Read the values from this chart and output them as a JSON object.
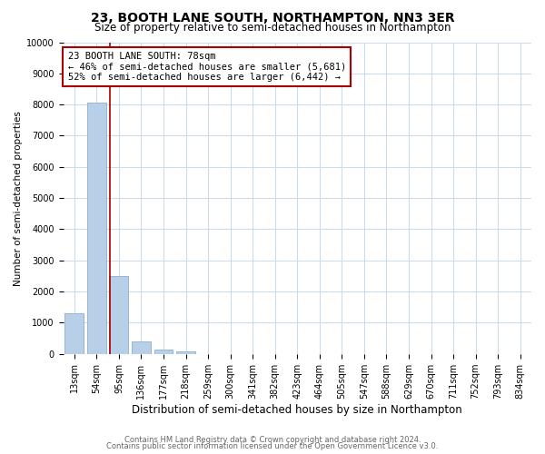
{
  "title": "23, BOOTH LANE SOUTH, NORTHAMPTON, NN3 3ER",
  "subtitle": "Size of property relative to semi-detached houses in Northampton",
  "xlabel": "Distribution of semi-detached houses by size in Northampton",
  "ylabel": "Number of semi-detached properties",
  "categories": [
    "13sqm",
    "54sqm",
    "95sqm",
    "136sqm",
    "177sqm",
    "218sqm",
    "259sqm",
    "300sqm",
    "341sqm",
    "382sqm",
    "423sqm",
    "464sqm",
    "505sqm",
    "547sqm",
    "588sqm",
    "629sqm",
    "670sqm",
    "711sqm",
    "752sqm",
    "793sqm",
    "834sqm"
  ],
  "values": [
    1300,
    8050,
    2500,
    400,
    130,
    90,
    0,
    0,
    0,
    0,
    0,
    0,
    0,
    0,
    0,
    0,
    0,
    0,
    0,
    0,
    0
  ],
  "bar_color": "#b8cfe8",
  "bar_edge_color": "#89afd4",
  "vline_color": "#aa0000",
  "vline_x": 1.58,
  "annotation_title": "23 BOOTH LANE SOUTH: 78sqm",
  "annotation_line1": "← 46% of semi-detached houses are smaller (5,681)",
  "annotation_line2": "52% of semi-detached houses are larger (6,442) →",
  "annotation_box_color": "#ffffff",
  "annotation_box_edge": "#aa0000",
  "ylim": [
    0,
    10000
  ],
  "yticks": [
    0,
    1000,
    2000,
    3000,
    4000,
    5000,
    6000,
    7000,
    8000,
    9000,
    10000
  ],
  "footnote1": "Contains HM Land Registry data © Crown copyright and database right 2024.",
  "footnote2": "Contains public sector information licensed under the Open Government Licence v3.0.",
  "bg_color": "#ffffff",
  "grid_color": "#ccdcec",
  "title_fontsize": 10,
  "subtitle_fontsize": 8.5,
  "ylabel_fontsize": 7.5,
  "xlabel_fontsize": 8.5,
  "tick_fontsize": 7,
  "annot_fontsize": 7.5,
  "footnote_fontsize": 6
}
